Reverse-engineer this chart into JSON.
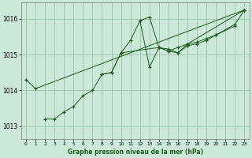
{
  "title": "Graphe pression niveau de la mer (hPa)",
  "background_color": "#cce8d8",
  "plot_bg_color": "#cce8d8",
  "grid_color": "#99c4aa",
  "line_color": "#1a5c1a",
  "marker_color": "#1a5c1a",
  "xlim": [
    -0.5,
    23.5
  ],
  "ylim": [
    1012.65,
    1016.45
  ],
  "yticks": [
    1013,
    1014,
    1015,
    1016
  ],
  "xticks": [
    0,
    1,
    2,
    3,
    4,
    5,
    6,
    7,
    8,
    9,
    10,
    11,
    12,
    13,
    14,
    15,
    16,
    17,
    18,
    19,
    20,
    21,
    22,
    23
  ],
  "series": [
    {
      "x": [
        0,
        1,
        23
      ],
      "y": [
        1014.3,
        1014.05,
        1016.25
      ]
    },
    {
      "x": [
        2,
        3,
        4,
        5,
        6,
        7,
        8,
        9,
        10,
        14,
        15,
        16,
        17,
        18,
        19,
        20,
        22
      ],
      "y": [
        1013.2,
        1013.2,
        1013.4,
        1013.55,
        1013.85,
        1014.0,
        1014.45,
        1014.5,
        1015.05,
        1015.2,
        1015.1,
        1015.2,
        1015.3,
        1015.35,
        1015.45,
        1015.55,
        1015.8
      ]
    },
    {
      "x": [
        8,
        9,
        10,
        11,
        12,
        13,
        14,
        15,
        16,
        17,
        18,
        19,
        20,
        22,
        23
      ],
      "y": [
        1014.45,
        1014.5,
        1015.05,
        1015.4,
        1015.95,
        1014.65,
        1015.2,
        1015.1,
        1015.05,
        1015.25,
        1015.3,
        1015.4,
        1015.55,
        1015.85,
        1016.25
      ]
    },
    {
      "x": [
        12,
        13,
        14,
        15,
        16,
        17,
        23
      ],
      "y": [
        1015.95,
        1016.05,
        1015.2,
        1015.15,
        1015.05,
        1015.3,
        1016.25
      ]
    }
  ]
}
